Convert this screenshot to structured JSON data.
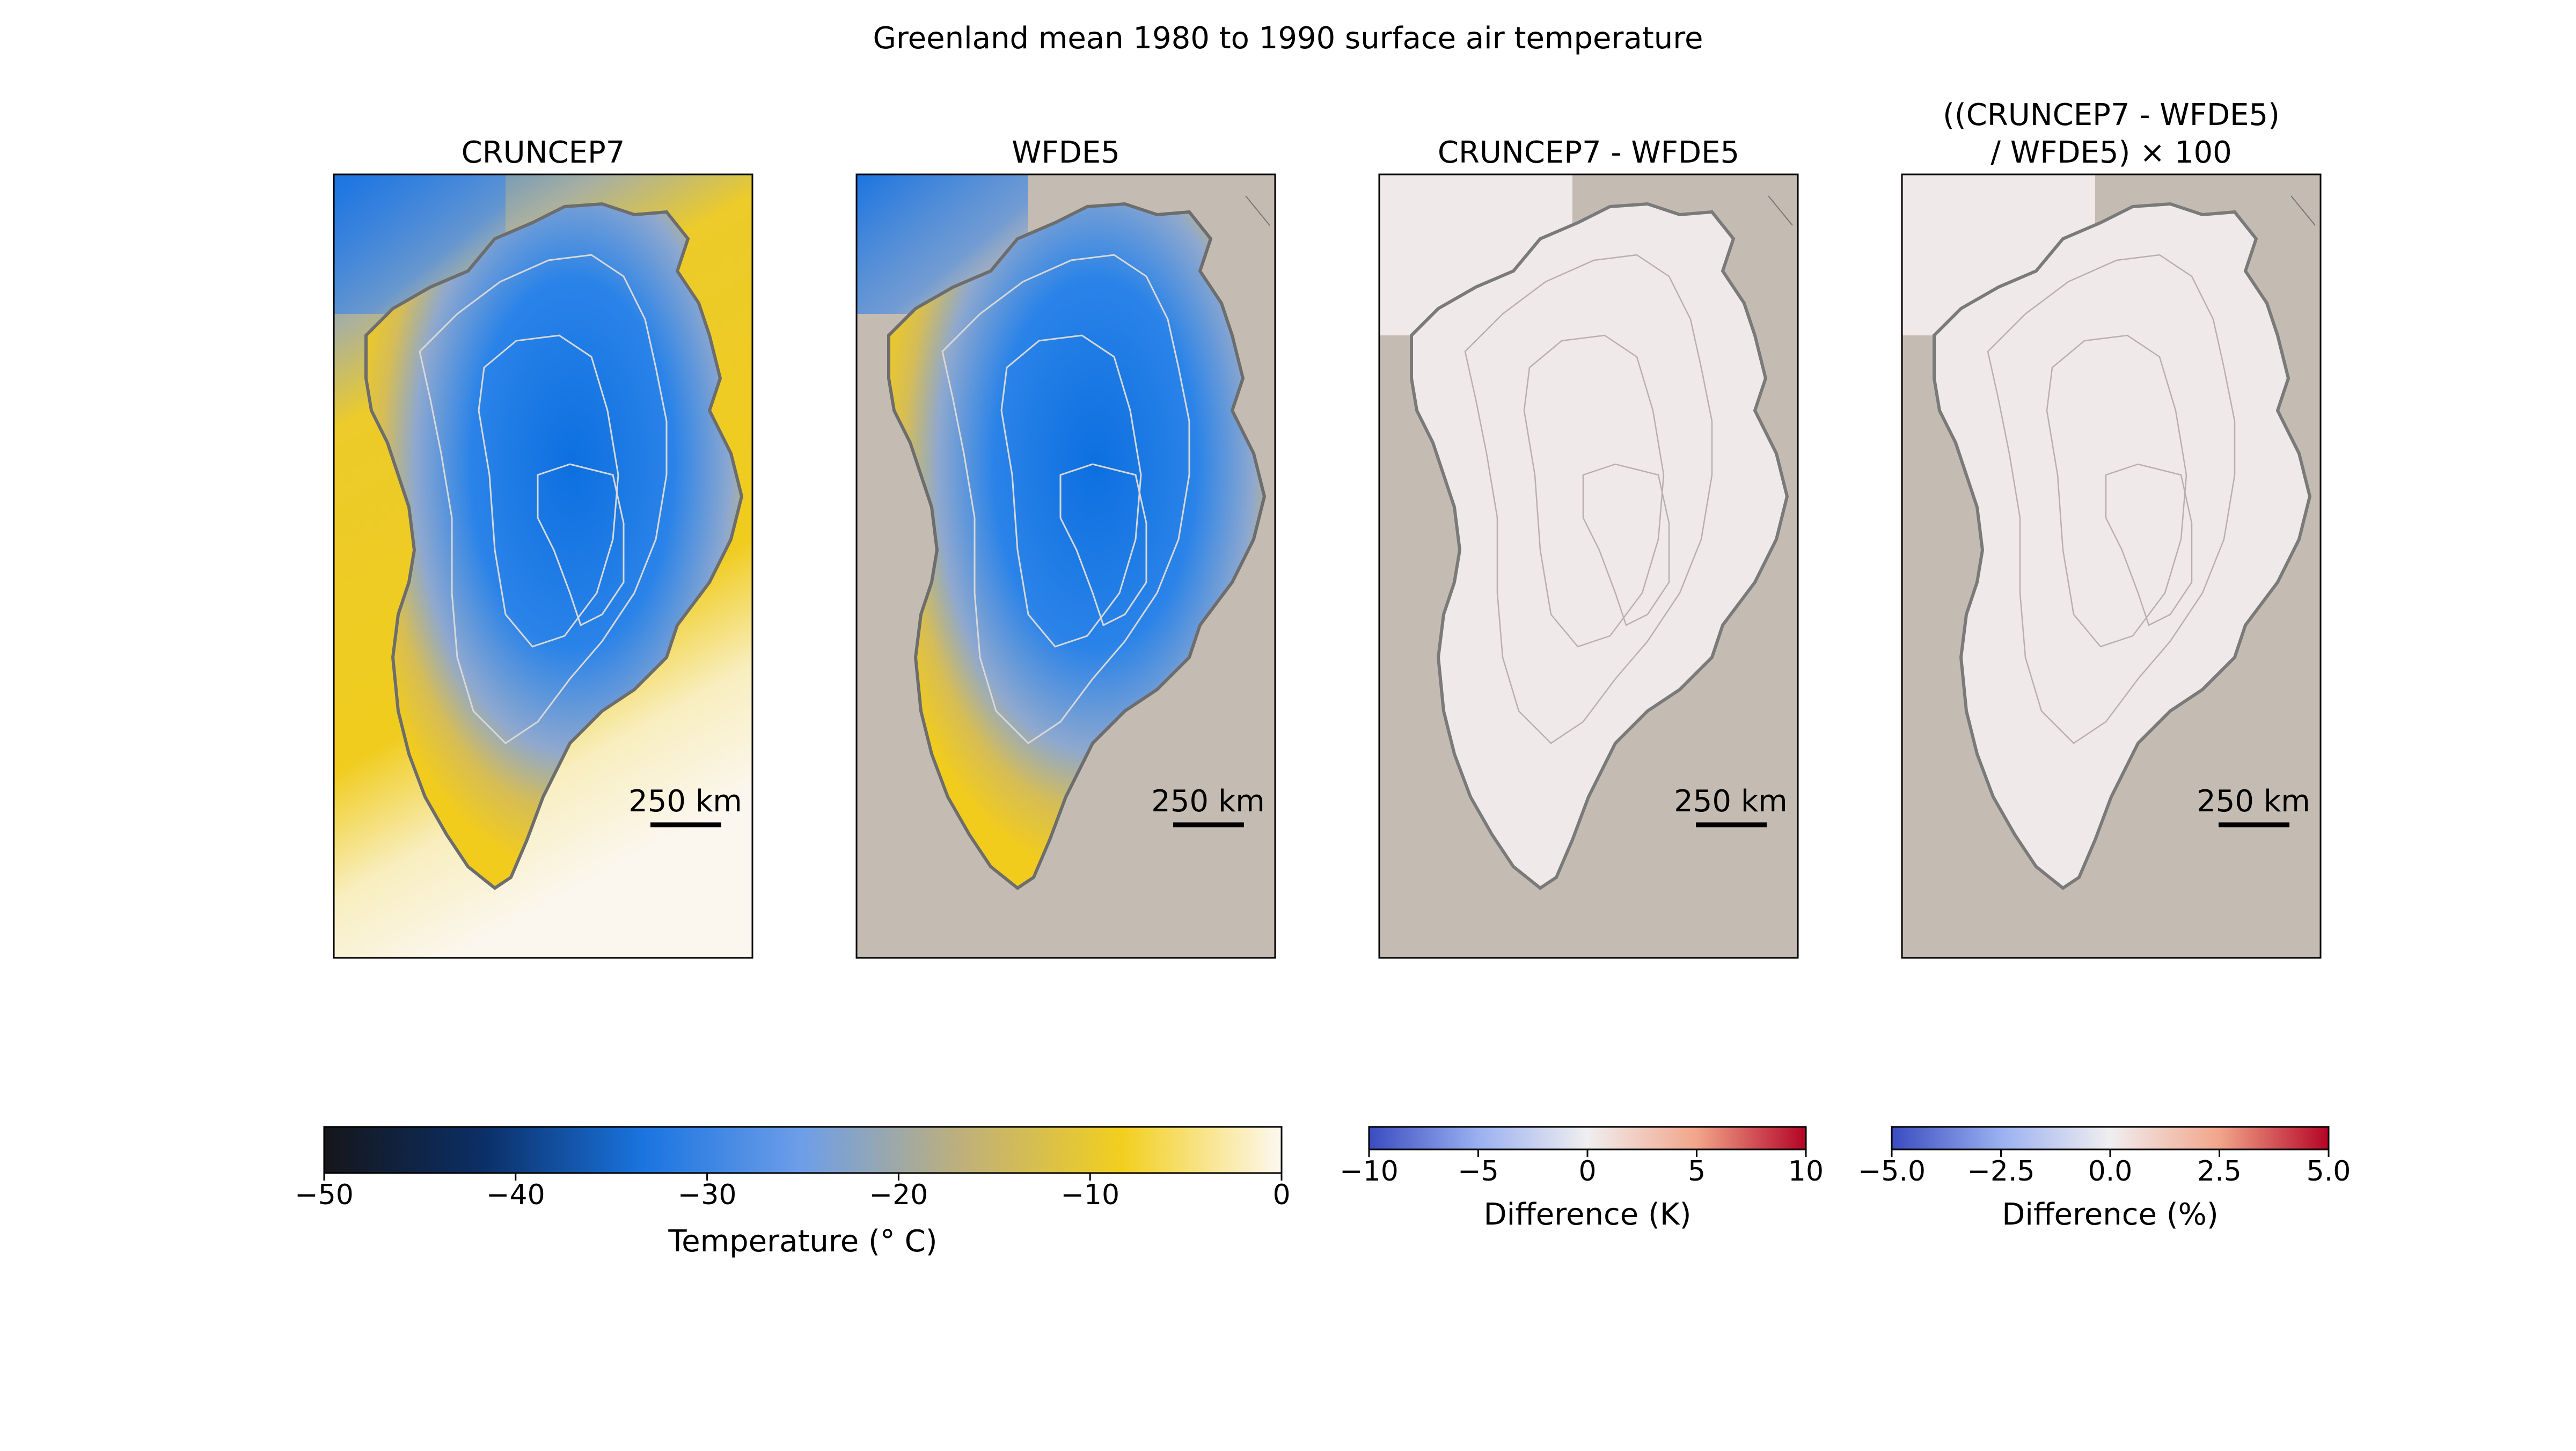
{
  "figure": {
    "title": "Greenland mean 1980 to 1990 surface air temperature",
    "colors": {
      "background_land": "#c4bcb2",
      "ice_cold": "#1a7ae6",
      "ice_warm": "#f0cc1e",
      "ocean_warm": "#faf6ee",
      "diff_neutral": "#efe9e9",
      "contour": "#7a7a7a"
    },
    "panels": [
      {
        "title": "CRUNCEP7",
        "scale_label": "250 km"
      },
      {
        "title": "WFDE5",
        "scale_label": "250 km"
      },
      {
        "title": "CRUNCEP7 - WFDE5",
        "scale_label": "250 km"
      },
      {
        "title_line1": "((CRUNCEP7 - WFDE5)",
        "title_line2": "/ WFDE5) × 100",
        "scale_label": "250 km"
      }
    ],
    "colorbars": [
      {
        "label": "Temperature (° C)",
        "ticks": [
          "−50",
          "−40",
          "−30",
          "−20",
          "−10",
          "0"
        ],
        "range": [
          -50,
          0
        ],
        "colormap": [
          "#15161a",
          "#0b2f66",
          "#1a74e0",
          "#6e9ee8",
          "#bfb07a",
          "#f2cf1e",
          "#fdf8f0"
        ]
      },
      {
        "label": "Difference (K)",
        "ticks": [
          "−10",
          "−5",
          "0",
          "5",
          "10"
        ],
        "range": [
          -10,
          10
        ],
        "colormap": [
          "#3a4cc0",
          "#9ab0f0",
          "#f0eef0",
          "#f2a58a",
          "#b40426"
        ]
      },
      {
        "label": "Difference (%)",
        "ticks": [
          "−5.0",
          "−2.5",
          "0.0",
          "2.5",
          "5.0"
        ],
        "range": [
          -5,
          5
        ],
        "colormap": [
          "#3a4cc0",
          "#9ab0f0",
          "#f0eef0",
          "#f2a58a",
          "#b40426"
        ]
      }
    ]
  }
}
